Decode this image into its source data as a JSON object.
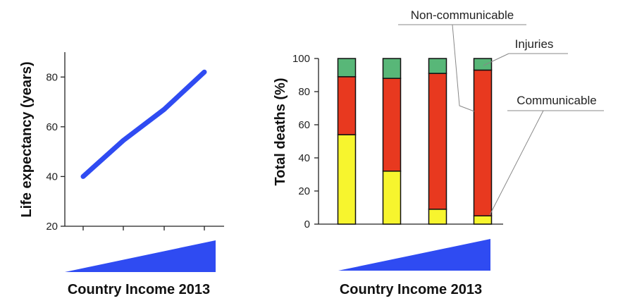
{
  "chart_data": [
    {
      "type": "line",
      "xlabel": "Country Income 2013",
      "ylabel": "Life expectancy (years)",
      "ylim": [
        20,
        90
      ],
      "yticks": [
        "20",
        "40",
        "60",
        "80"
      ],
      "x": [
        1,
        2,
        3,
        4
      ],
      "series": [
        {
          "values": [
            40,
            54.5,
            67,
            82
          ]
        }
      ],
      "colors": {
        "line": "#2f4bf2",
        "income_wedge": "#2f4bf2"
      }
    },
    {
      "type": "bar",
      "stacked": true,
      "xlabel": "Country Income 2013",
      "ylabel": "Total deaths  (%)",
      "ylim": [
        0,
        100
      ],
      "yticks": [
        "0",
        "20",
        "40",
        "60",
        "80",
        "100"
      ],
      "categories": [
        "1",
        "2",
        "3",
        "4"
      ],
      "series": [
        {
          "name": "Communicable",
          "values": [
            54,
            32,
            9,
            5
          ],
          "color": "#f7f52e"
        },
        {
          "name": "Non-communicable",
          "values": [
            35,
            56,
            82,
            88
          ],
          "color": "#e8391f"
        },
        {
          "name": "Injuries",
          "values": [
            11,
            12,
            9,
            7
          ],
          "color": "#58b778"
        }
      ]
    }
  ]
}
